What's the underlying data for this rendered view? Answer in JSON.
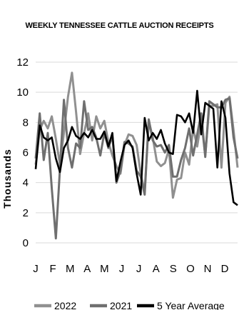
{
  "chart_data": {
    "type": "line",
    "title": "WEEKLY TENNESSEE CATTLE AUCTION RECEIPTS",
    "ylabel": "Thousands",
    "xlabel": "",
    "ylim": [
      0,
      12
    ],
    "yticks": [
      "0",
      "2",
      "4",
      "6",
      "8",
      "10",
      "12"
    ],
    "months": [
      "J",
      "F",
      "M",
      "A",
      "M",
      "J",
      "J",
      "A",
      "S",
      "O",
      "N",
      "D"
    ],
    "grid": true,
    "legend_position": "bottom",
    "series": [
      {
        "name": "2022",
        "color": "#909090",
        "values": [
          5.2,
          7.5,
          8.1,
          7.6,
          8.4,
          6.9,
          5.2,
          7.3,
          9.7,
          11.3,
          8.7,
          5.9,
          7.3,
          8.6,
          6.8,
          8.4,
          7.6,
          8.1,
          6.7,
          5.8,
          5.1,
          4.6,
          6.5,
          7.2,
          7.1,
          6.5,
          4.6,
          3.4,
          8.1,
          7.0,
          5.4,
          5.1,
          5.3,
          6.2,
          3.0,
          4.2,
          4.3,
          6.0,
          5.2,
          7.6,
          6.4,
          8.1,
          5.8,
          9.1,
          9.1,
          9.2,
          5.0,
          9.3,
          9.7,
          7.5,
          5.0
        ]
      },
      {
        "name": "2021",
        "color": "#6f6f6f",
        "values": [
          5.6,
          8.6,
          5.5,
          7.3,
          3.6,
          0.3,
          4.9,
          9.5,
          6.3,
          5.0,
          6.6,
          6.3,
          9.4,
          7.5,
          7.7,
          7.0,
          5.8,
          7.3,
          6.3,
          7.1,
          4.0,
          4.8,
          6.7,
          6.6,
          6.4,
          4.8,
          4.4,
          3.2,
          8.2,
          6.8,
          6.4,
          6.5,
          6.0,
          6.5,
          4.4,
          4.4,
          5.5,
          6.3,
          7.6,
          5.8,
          7.2,
          8.6,
          5.7,
          9.4,
          9.2,
          9.0,
          9.0,
          9.5,
          9.6,
          7.0,
          5.6
        ]
      },
      {
        "name": "5 Year Average",
        "color": "#000000",
        "values": [
          4.9,
          7.8,
          7.0,
          6.8,
          7.0,
          5.6,
          4.7,
          6.3,
          6.8,
          7.7,
          7.1,
          6.9,
          7.3,
          7.0,
          7.5,
          6.9,
          6.9,
          7.4,
          6.4,
          7.3,
          4.1,
          5.4,
          6.5,
          6.8,
          6.3,
          4.6,
          3.2,
          8.3,
          6.8,
          7.3,
          6.9,
          7.5,
          6.6,
          6.0,
          5.9,
          8.5,
          8.4,
          8.0,
          8.6,
          7.3,
          10.1,
          7.2,
          9.3,
          9.1,
          8.9,
          5.0,
          9.4,
          8.3,
          4.6,
          2.7,
          2.5
        ]
      }
    ]
  }
}
